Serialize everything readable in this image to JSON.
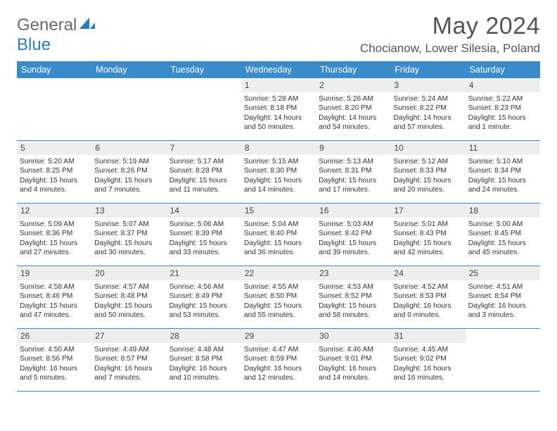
{
  "logo": {
    "word1": "General",
    "word2": "Blue"
  },
  "title": "May 2024",
  "location": "Chocianow, Lower Silesia, Poland",
  "colors": {
    "header_bg": "#3a8bc9",
    "header_text": "#ffffff",
    "daynum_bg": "#eeeeee",
    "text": "#333333",
    "logo_gray": "#6b6b6b",
    "logo_blue": "#2b7bbf"
  },
  "day_names": [
    "Sunday",
    "Monday",
    "Tuesday",
    "Wednesday",
    "Thursday",
    "Friday",
    "Saturday"
  ],
  "weeks": [
    [
      null,
      null,
      null,
      {
        "n": "1",
        "sr": "5:28 AM",
        "ss": "8:18 PM",
        "dl": "14 hours and 50 minutes."
      },
      {
        "n": "2",
        "sr": "5:26 AM",
        "ss": "8:20 PM",
        "dl": "14 hours and 54 minutes."
      },
      {
        "n": "3",
        "sr": "5:24 AM",
        "ss": "8:22 PM",
        "dl": "14 hours and 57 minutes."
      },
      {
        "n": "4",
        "sr": "5:22 AM",
        "ss": "8:23 PM",
        "dl": "15 hours and 1 minute."
      }
    ],
    [
      {
        "n": "5",
        "sr": "5:20 AM",
        "ss": "8:25 PM",
        "dl": "15 hours and 4 minutes."
      },
      {
        "n": "6",
        "sr": "5:19 AM",
        "ss": "8:26 PM",
        "dl": "15 hours and 7 minutes."
      },
      {
        "n": "7",
        "sr": "5:17 AM",
        "ss": "8:28 PM",
        "dl": "15 hours and 11 minutes."
      },
      {
        "n": "8",
        "sr": "5:15 AM",
        "ss": "8:30 PM",
        "dl": "15 hours and 14 minutes."
      },
      {
        "n": "9",
        "sr": "5:13 AM",
        "ss": "8:31 PM",
        "dl": "15 hours and 17 minutes."
      },
      {
        "n": "10",
        "sr": "5:12 AM",
        "ss": "8:33 PM",
        "dl": "15 hours and 20 minutes."
      },
      {
        "n": "11",
        "sr": "5:10 AM",
        "ss": "8:34 PM",
        "dl": "15 hours and 24 minutes."
      }
    ],
    [
      {
        "n": "12",
        "sr": "5:09 AM",
        "ss": "8:36 PM",
        "dl": "15 hours and 27 minutes."
      },
      {
        "n": "13",
        "sr": "5:07 AM",
        "ss": "8:37 PM",
        "dl": "15 hours and 30 minutes."
      },
      {
        "n": "14",
        "sr": "5:06 AM",
        "ss": "8:39 PM",
        "dl": "15 hours and 33 minutes."
      },
      {
        "n": "15",
        "sr": "5:04 AM",
        "ss": "8:40 PM",
        "dl": "15 hours and 36 minutes."
      },
      {
        "n": "16",
        "sr": "5:03 AM",
        "ss": "8:42 PM",
        "dl": "15 hours and 39 minutes."
      },
      {
        "n": "17",
        "sr": "5:01 AM",
        "ss": "8:43 PM",
        "dl": "15 hours and 42 minutes."
      },
      {
        "n": "18",
        "sr": "5:00 AM",
        "ss": "8:45 PM",
        "dl": "15 hours and 45 minutes."
      }
    ],
    [
      {
        "n": "19",
        "sr": "4:58 AM",
        "ss": "8:46 PM",
        "dl": "15 hours and 47 minutes."
      },
      {
        "n": "20",
        "sr": "4:57 AM",
        "ss": "8:48 PM",
        "dl": "15 hours and 50 minutes."
      },
      {
        "n": "21",
        "sr": "4:56 AM",
        "ss": "8:49 PM",
        "dl": "15 hours and 53 minutes."
      },
      {
        "n": "22",
        "sr": "4:55 AM",
        "ss": "8:50 PM",
        "dl": "15 hours and 55 minutes."
      },
      {
        "n": "23",
        "sr": "4:53 AM",
        "ss": "8:52 PM",
        "dl": "15 hours and 58 minutes."
      },
      {
        "n": "24",
        "sr": "4:52 AM",
        "ss": "8:53 PM",
        "dl": "16 hours and 0 minutes."
      },
      {
        "n": "25",
        "sr": "4:51 AM",
        "ss": "8:54 PM",
        "dl": "16 hours and 3 minutes."
      }
    ],
    [
      {
        "n": "26",
        "sr": "4:50 AM",
        "ss": "8:56 PM",
        "dl": "16 hours and 5 minutes."
      },
      {
        "n": "27",
        "sr": "4:49 AM",
        "ss": "8:57 PM",
        "dl": "16 hours and 7 minutes."
      },
      {
        "n": "28",
        "sr": "4:48 AM",
        "ss": "8:58 PM",
        "dl": "16 hours and 10 minutes."
      },
      {
        "n": "29",
        "sr": "4:47 AM",
        "ss": "8:59 PM",
        "dl": "16 hours and 12 minutes."
      },
      {
        "n": "30",
        "sr": "4:46 AM",
        "ss": "9:01 PM",
        "dl": "16 hours and 14 minutes."
      },
      {
        "n": "31",
        "sr": "4:45 AM",
        "ss": "9:02 PM",
        "dl": "16 hours and 16 minutes."
      },
      null
    ]
  ],
  "labels": {
    "sunrise": "Sunrise:",
    "sunset": "Sunset:",
    "daylight": "Daylight:"
  }
}
